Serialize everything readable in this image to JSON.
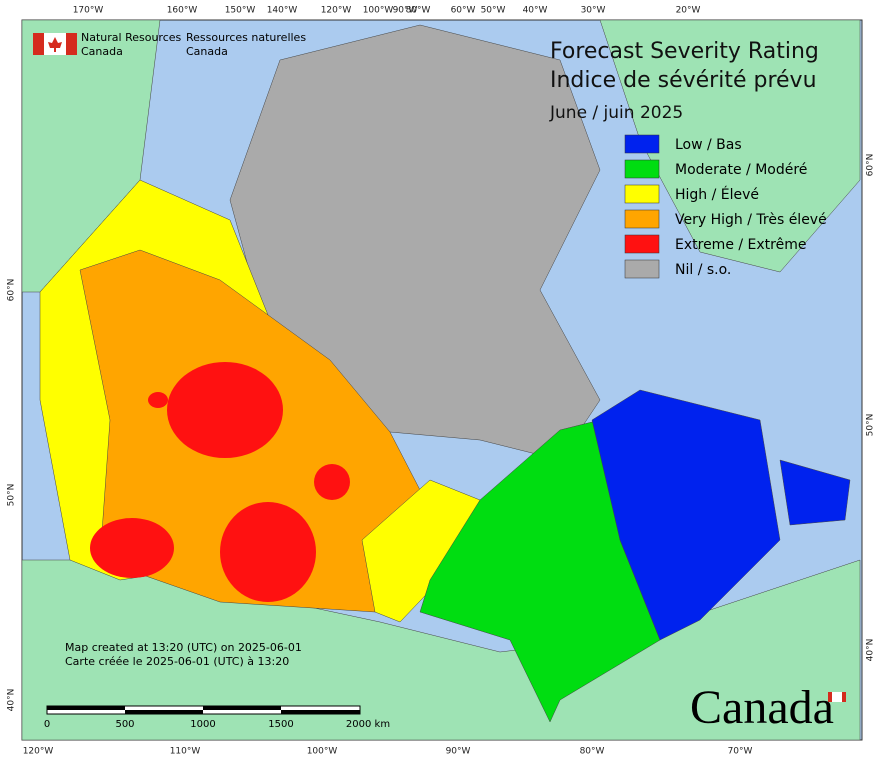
{
  "header": {
    "agency_en": [
      "Natural Resources",
      "Canada"
    ],
    "agency_fr": [
      "Ressources naturelles",
      "Canada"
    ]
  },
  "title": {
    "line1": "Forecast Severity Rating",
    "line2": "Indice de sévérité prévu",
    "period": "June / juin 2025"
  },
  "legend": [
    {
      "label": "Low / Bas",
      "color": "#0022ee"
    },
    {
      "label": "Moderate / Modéré",
      "color": "#00dd11"
    },
    {
      "label": "High / Élevé",
      "color": "#ffff00"
    },
    {
      "label": "Very High / Très élevé",
      "color": "#ffa500"
    },
    {
      "label": "Extreme / Extrême",
      "color": "#ff1111"
    },
    {
      "label": "Nil / s.o.",
      "color": "#aaaaaa"
    }
  ],
  "graticule": {
    "top": [
      "170°W",
      "160°W",
      "150°W",
      "140°W",
      "120°W",
      "100°W",
      "90°W",
      "80°W",
      "60°W",
      "50°W",
      "40°W",
      "30°W",
      "20°W"
    ],
    "bottom": [
      "120°W",
      "110°W",
      "100°W",
      "90°W",
      "80°W",
      "70°W"
    ],
    "left": [
      "60°N",
      "50°N",
      "40°N"
    ],
    "right": [
      "60°N",
      "50°N",
      "40°N"
    ]
  },
  "notes": [
    "Map created at 13:20 (UTC) on 2025-06-01",
    "Carte créée le 2025-06-01 (UTC) à 13:20"
  ],
  "scale_bar": [
    "0",
    "500",
    "1000",
    "1500",
    "2000 km"
  ],
  "wordmark": "Canada"
}
